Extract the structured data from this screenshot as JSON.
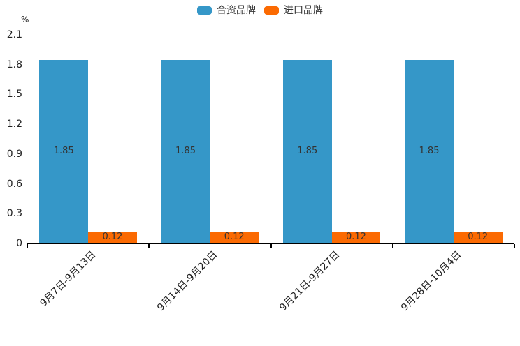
{
  "chart_data": {
    "type": "bar",
    "title": "",
    "ylabel": "%",
    "categories": [
      "9月7日-9月13日",
      "9月14日-9月20日",
      "9月21日-9月27日",
      "9月28日-10月4日"
    ],
    "series": [
      {
        "name": "合资品牌",
        "color": "#3597c8",
        "values": [
          1.85,
          1.85,
          1.85,
          1.85
        ]
      },
      {
        "name": "进口品牌",
        "color": "#fb6a02",
        "values": [
          0.12,
          0.12,
          0.12,
          0.12
        ]
      }
    ],
    "ylim": [
      0,
      2.1
    ],
    "ytick_labels": [
      "0",
      "0.3",
      "0.6",
      "0.9",
      "1.2",
      "1.5",
      "1.8",
      "2.1"
    ],
    "grid": false,
    "legend_position": "top-center",
    "value_labels_inside_bars": true,
    "value_label_color": "#333333",
    "axis_color": "#000000",
    "text_color": "#222222",
    "background_color": "#ffffff"
  }
}
